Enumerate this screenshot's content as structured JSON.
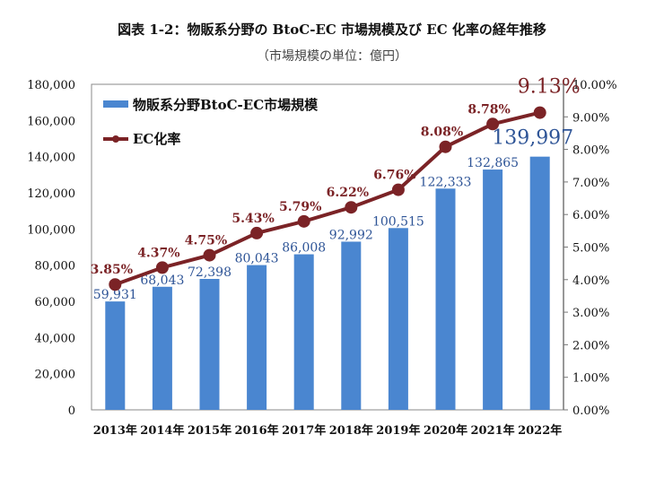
{
  "title": "図表 1-2：物販系分野の BtoC-EC 市場規模及び EC 化率の経年推移",
  "subtitle": "（市場規模の単位：億円）",
  "chart_data": {
    "type": "bar+line",
    "categories": [
      "2013年",
      "2014年",
      "2015年",
      "2016年",
      "2017年",
      "2018年",
      "2019年",
      "2020年",
      "2021年",
      "2022年"
    ],
    "series": [
      {
        "name": "物販系分野BtoC-EC市場規模",
        "type": "bar",
        "axis": "left",
        "color": "#4a86d0",
        "values": [
          59931,
          68043,
          72398,
          80043,
          86008,
          92992,
          100515,
          122333,
          132865,
          139997
        ],
        "labels": [
          "59,931",
          "68,043",
          "72,398",
          "80,043",
          "86,008",
          "92,992",
          "100,515",
          "122,333",
          "132,865",
          "139,997"
        ]
      },
      {
        "name": "EC化率",
        "type": "line",
        "axis": "right",
        "color": "#7b2326",
        "values": [
          3.85,
          4.37,
          4.75,
          5.43,
          5.79,
          6.22,
          6.76,
          8.08,
          8.78,
          9.13
        ],
        "labels": [
          "3.85%",
          "4.37%",
          "4.75%",
          "5.43%",
          "5.79%",
          "6.22%",
          "6.76%",
          "8.08%",
          "8.78%",
          "9.13%"
        ]
      }
    ],
    "left_axis": {
      "ylim": [
        0,
        180000
      ],
      "ticks": [
        "0",
        "20,000",
        "40,000",
        "60,000",
        "80,000",
        "100,000",
        "120,000",
        "140,000",
        "160,000",
        "180,000"
      ]
    },
    "right_axis": {
      "ylim": [
        0,
        10
      ],
      "ticks": [
        "0.00%",
        "1.00%",
        "2.00%",
        "3.00%",
        "4.00%",
        "5.00%",
        "6.00%",
        "7.00%",
        "8.00%",
        "9.00%",
        "10.00%"
      ]
    },
    "grid": false,
    "legend": "top-left"
  }
}
